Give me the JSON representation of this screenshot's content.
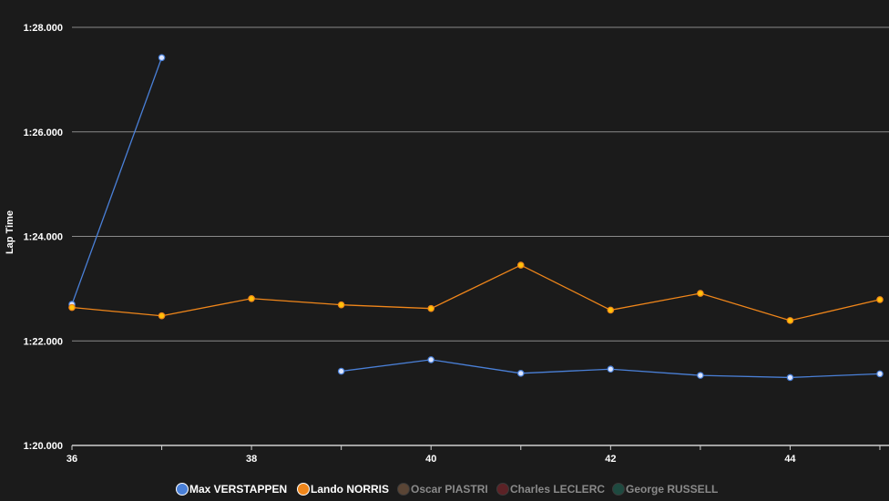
{
  "chart_data": {
    "type": "line",
    "title": "",
    "xlabel": "",
    "ylabel": "Lap Time",
    "xlim": [
      36,
      45
    ],
    "x_ticks": [
      36,
      38,
      40,
      42,
      44
    ],
    "x_tick_labels": [
      "36",
      "38",
      "40",
      "42",
      "44"
    ],
    "ylim": [
      80.0,
      88.0
    ],
    "y_ticks": [
      80,
      82,
      84,
      86,
      88
    ],
    "y_tick_labels": [
      "1:20.000",
      "1:22.000",
      "1:24.000",
      "1:26.000",
      "1:28.000"
    ],
    "grid": true,
    "legend_position": "bottom",
    "series": [
      {
        "name": "Max VERSTAPPEN",
        "color": "#4a80d8",
        "marker_fill": "#dde6ff",
        "active": true,
        "points": [
          [
            36,
            82.7
          ],
          [
            37,
            87.42
          ],
          [
            39,
            81.42
          ],
          [
            40,
            81.64
          ],
          [
            41,
            81.38
          ],
          [
            42,
            81.46
          ],
          [
            43,
            81.34
          ],
          [
            44,
            81.3
          ],
          [
            45,
            81.37
          ]
        ]
      },
      {
        "name": "Lando NORRIS",
        "color": "#f0861a",
        "marker_fill": "#ffc20a",
        "active": true,
        "points": [
          [
            36,
            82.64
          ],
          [
            37,
            82.48
          ],
          [
            38,
            82.81
          ],
          [
            39,
            82.69
          ],
          [
            40,
            82.62
          ],
          [
            41,
            83.45
          ],
          [
            42,
            82.59
          ],
          [
            43,
            82.91
          ],
          [
            44,
            82.39
          ],
          [
            45,
            82.79
          ]
        ]
      },
      {
        "name": "Oscar PIASTRI",
        "color": "#5a4535",
        "active": false,
        "points": []
      },
      {
        "name": "Charles LECLERC",
        "color": "#5c2226",
        "active": false,
        "points": []
      },
      {
        "name": "George RUSSELL",
        "color": "#1e4a40",
        "active": false,
        "points": []
      }
    ]
  }
}
